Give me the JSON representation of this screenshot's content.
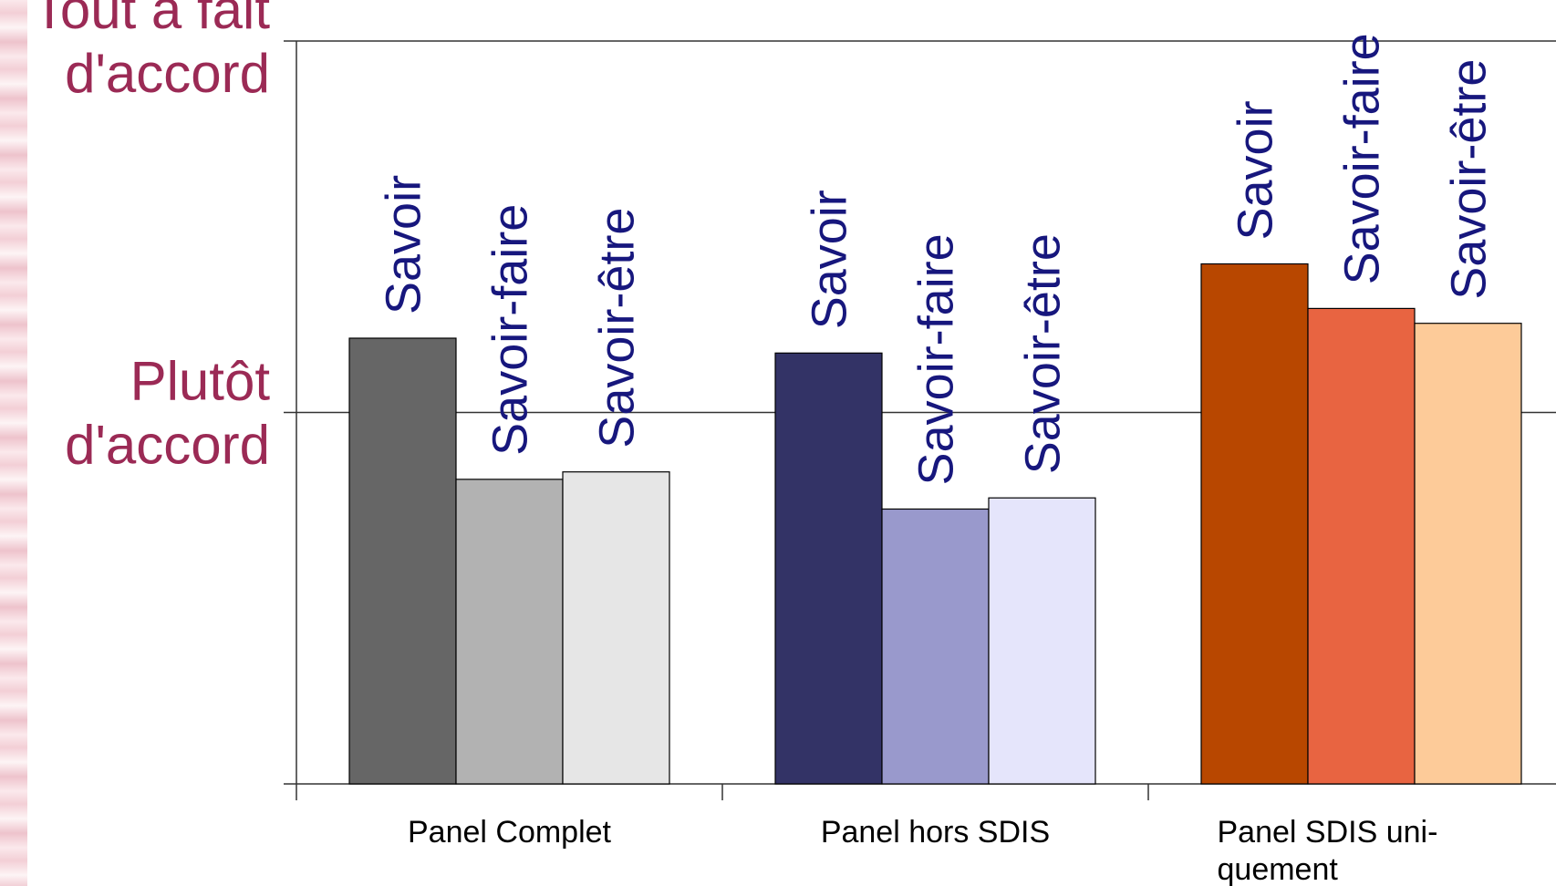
{
  "chart_data": {
    "type": "bar",
    "title": "",
    "xlabel": "",
    "ylabel": "",
    "categories": [
      "Panel Complet",
      "Panel hors SDIS",
      "Panel SDIS uni-quement"
    ],
    "category_label_lines": [
      [
        "Panel Complet"
      ],
      [
        "Panel hors SDIS"
      ],
      [
        "Panel SDIS uni-",
        "quement"
      ]
    ],
    "ylim": [
      0,
      2
    ],
    "yticks": [
      {
        "value": 1,
        "lines": [
          "Plutôt",
          "d'accord"
        ]
      },
      {
        "value": 2,
        "lines": [
          "Tout à fait",
          "d'accord"
        ]
      }
    ],
    "grid": true,
    "legend": "none",
    "series": [
      {
        "name": "Savoir",
        "values": [
          1.2,
          1.16,
          1.4
        ]
      },
      {
        "name": "Savoir-faire",
        "values": [
          0.82,
          0.74,
          1.28
        ]
      },
      {
        "name": "Savoir-être",
        "values": [
          0.84,
          0.77,
          1.24
        ]
      }
    ],
    "colors": [
      [
        "#666666",
        "#b2b2b2",
        "#e6e6e6"
      ],
      [
        "#333366",
        "#9999cc",
        "#e5e5fb"
      ],
      [
        "#b84700",
        "#e86441",
        "#fdcb99"
      ]
    ],
    "label_color": "#17177d",
    "tick_label_color": "#9b2a55"
  }
}
